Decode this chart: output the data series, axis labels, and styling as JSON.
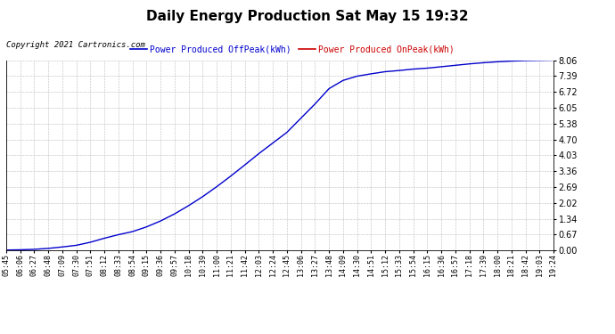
{
  "title": "Daily Energy Production Sat May 15 19:32",
  "copyright": "Copyright 2021 Cartronics.com",
  "legend_offpeak": "Power Produced OffPeak(kWh)",
  "legend_onpeak": "Power Produced OnPeak(kWh)",
  "line_color": "#0000cc",
  "line_color_onpeak": "#cc0000",
  "bg_color": "#ffffff",
  "grid_color": "#bbbbbb",
  "ylim": [
    0.0,
    8.06
  ],
  "yticks": [
    0.0,
    0.67,
    1.34,
    2.02,
    2.69,
    3.36,
    4.03,
    4.7,
    5.38,
    6.05,
    6.72,
    7.39,
    8.06
  ],
  "x_labels": [
    "05:45",
    "06:06",
    "06:27",
    "06:48",
    "07:09",
    "07:30",
    "07:51",
    "08:12",
    "08:33",
    "08:54",
    "09:15",
    "09:36",
    "09:57",
    "10:18",
    "10:39",
    "11:00",
    "11:21",
    "11:42",
    "12:03",
    "12:24",
    "12:45",
    "13:06",
    "13:27",
    "13:48",
    "14:09",
    "14:30",
    "14:51",
    "15:12",
    "15:33",
    "15:54",
    "16:15",
    "16:36",
    "16:57",
    "17:18",
    "17:39",
    "18:00",
    "18:21",
    "18:42",
    "19:03",
    "19:24"
  ],
  "y_values": [
    0.02,
    0.03,
    0.05,
    0.09,
    0.15,
    0.22,
    0.35,
    0.52,
    0.67,
    0.8,
    1.0,
    1.25,
    1.55,
    1.9,
    2.28,
    2.7,
    3.15,
    3.62,
    4.1,
    4.55,
    5.0,
    5.6,
    6.2,
    6.85,
    7.2,
    7.38,
    7.48,
    7.57,
    7.62,
    7.68,
    7.72,
    7.78,
    7.84,
    7.9,
    7.95,
    7.99,
    8.02,
    8.04,
    8.05,
    8.06
  ],
  "title_fontsize": 11,
  "copyright_fontsize": 6.5,
  "legend_fontsize": 7,
  "tick_fontsize": 7,
  "xtick_fontsize": 6
}
